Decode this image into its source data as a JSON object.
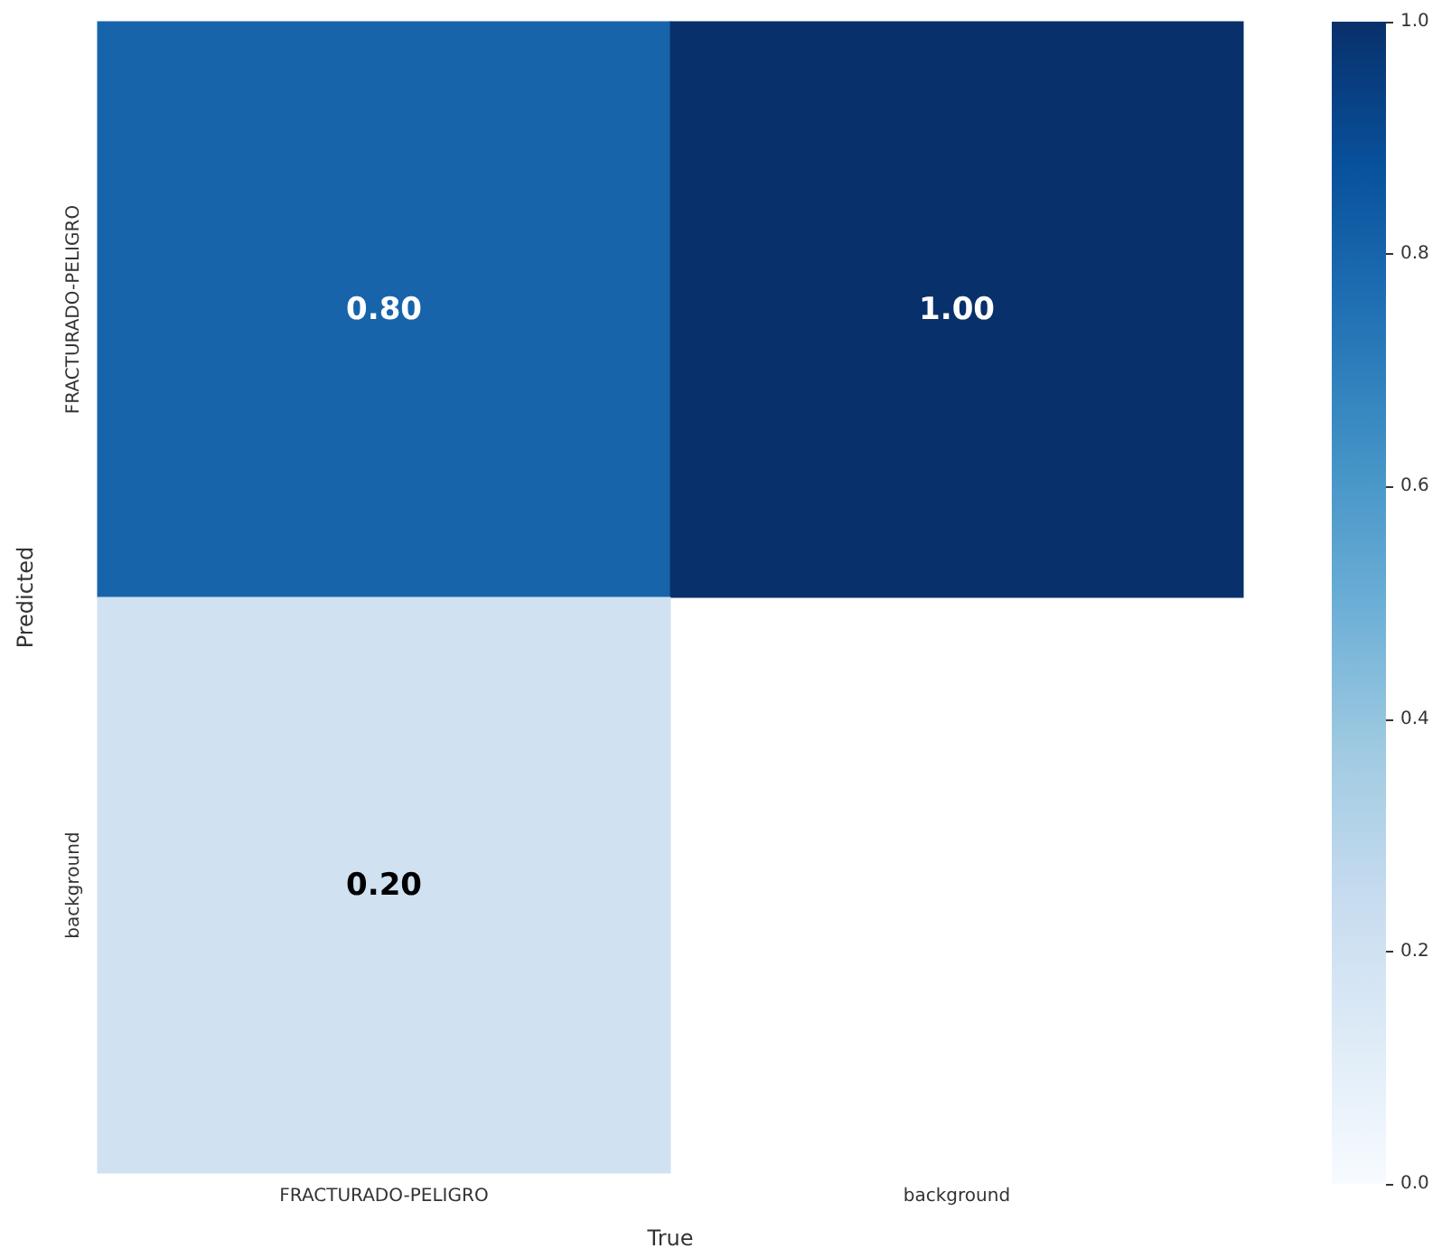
{
  "chart_data": {
    "type": "heatmap",
    "xlabel": "True",
    "ylabel": "Predicted",
    "categories": [
      "FRACTURADO-PELIGRO",
      "background"
    ],
    "y_categories": [
      "FRACTURADO-PELIGRO",
      "background"
    ],
    "cells": [
      [
        0.8,
        1.0
      ],
      [
        0.2,
        null
      ]
    ],
    "cell_labels": [
      [
        "0.80",
        "1.00"
      ],
      [
        "0.20",
        null
      ]
    ],
    "clim": [
      0,
      1
    ],
    "cticks": [
      {
        "value": 0,
        "label": "0.0"
      },
      {
        "value": 0.2,
        "label": "0.2"
      },
      {
        "value": 0.4,
        "label": "0.4"
      },
      {
        "value": 0.6,
        "label": "0.6"
      },
      {
        "value": 0.8,
        "label": "0.8"
      },
      {
        "value": 1,
        "label": "1.0"
      }
    ]
  }
}
